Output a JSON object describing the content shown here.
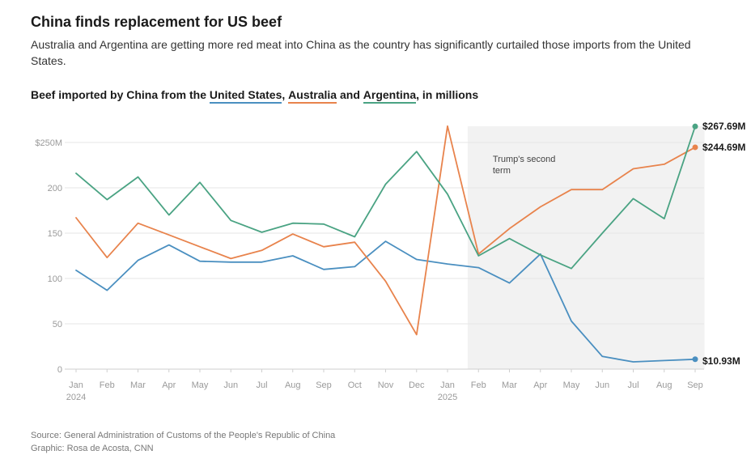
{
  "header": {
    "title": "China finds replacement for US beef",
    "subtitle": "Australia and Argentina are getting more red meat into China as the country has significantly curtailed those imports from the United States."
  },
  "chart_heading": {
    "prefix": "Beef imported by China from the ",
    "sep1": ", ",
    "sep2": " and ",
    "suffix": ", in millions"
  },
  "footer": {
    "source": "Source: General Administration of Customs of the People's Republic of China",
    "graphic": "Graphic: Rosa de Acosta, CNN"
  },
  "colors": {
    "us": "#4a8fc0",
    "australia": "#e8834c",
    "argentina": "#4aa383",
    "shade": "#f2f2f2",
    "grid": "#e6e6e6"
  },
  "chart_data": {
    "type": "line",
    "title": "Beef imported by China from the United States, Australia and Argentina, in millions",
    "xlabel": "",
    "ylabel": "",
    "ylim": [
      0,
      250
    ],
    "yticks": [
      0,
      50,
      100,
      150,
      200,
      250
    ],
    "ytick_labels": [
      "0",
      "50",
      "100",
      "150",
      "200",
      "$250M"
    ],
    "categories": [
      "Jan",
      "Feb",
      "Mar",
      "Apr",
      "May",
      "Jun",
      "Jul",
      "Aug",
      "Sep",
      "Oct",
      "Nov",
      "Dec",
      "Jan",
      "Feb",
      "Mar",
      "Apr",
      "May",
      "Jun",
      "Jul",
      "Aug",
      "Sep"
    ],
    "year_labels": [
      {
        "index": 0,
        "label": "2024"
      },
      {
        "index": 12,
        "label": "2025"
      }
    ],
    "shaded_region": {
      "from": 12.65,
      "to": 20.3,
      "label_line1": "Trump's second",
      "label_line2": "term"
    },
    "series": [
      {
        "name": "United States",
        "key": "us",
        "values": [
          109,
          87,
          120,
          137,
          119,
          118,
          118,
          125,
          110,
          113,
          141,
          121,
          116,
          112,
          95,
          127,
          53,
          14,
          8,
          9.5,
          10.93
        ],
        "end_label": "$10.93M"
      },
      {
        "name": "Australia",
        "key": "australia",
        "values": [
          167,
          123,
          161,
          148,
          135,
          122,
          131,
          149,
          135,
          140,
          97,
          38,
          268,
          127,
          155,
          179,
          198,
          198,
          221,
          226,
          244.69
        ],
        "end_label": "$244.69M"
      },
      {
        "name": "Argentina",
        "key": "argentina",
        "values": [
          216,
          187,
          212,
          170,
          206,
          164,
          151,
          161,
          160,
          146,
          204,
          240,
          193,
          125,
          144,
          126,
          111,
          150,
          188,
          166,
          267.69
        ],
        "end_label": "$267.69M"
      }
    ]
  }
}
